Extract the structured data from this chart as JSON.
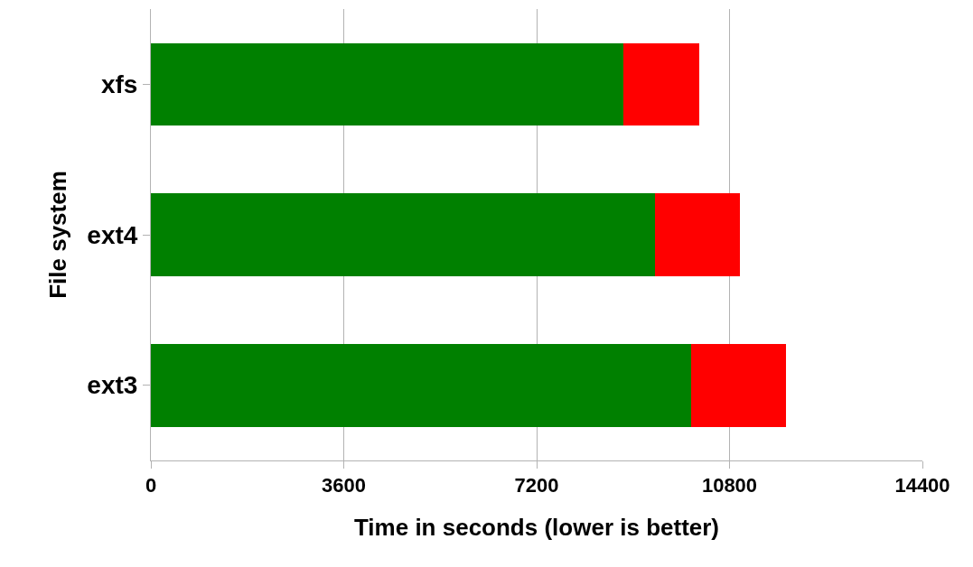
{
  "chart_data": {
    "type": "bar",
    "orientation": "horizontal",
    "stacked": true,
    "xlabel": "Time in seconds (lower is better)",
    "ylabel": "File system",
    "categories": [
      "xfs",
      "ext4",
      "ext3"
    ],
    "series": [
      {
        "color": "#008000",
        "values": [
          8820,
          9410,
          10080
        ]
      },
      {
        "color": "#ff0000",
        "values": [
          1420,
          1590,
          1770
        ]
      }
    ],
    "xlim": [
      0,
      14400
    ],
    "xticks": [
      0,
      3600,
      7200,
      10800,
      14400
    ],
    "grid": "x"
  }
}
